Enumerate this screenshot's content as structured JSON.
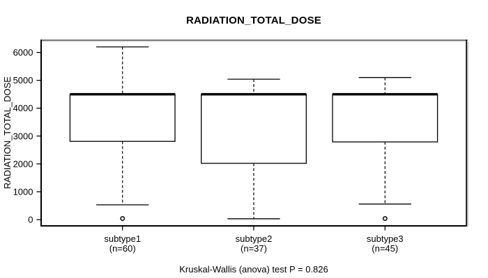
{
  "chart_data": {
    "type": "boxplot",
    "title": "RADIATION_TOTAL_DOSE",
    "ylabel": "RADIATION_TOTAL_DOSE",
    "xlabel": "",
    "caption": "Kruskal-Wallis (anova) test P = 0.826",
    "ylim": [
      0,
      6400
    ],
    "y_ticks": [
      0,
      1000,
      2000,
      3000,
      4000,
      5000,
      6000
    ],
    "grid": false,
    "legend": null,
    "categories": [
      "subtype1",
      "subtype2",
      "subtype3"
    ],
    "groups": [
      {
        "label": "subtype1",
        "sublabel": "(n=60)",
        "n": 60,
        "whisker_low": 530,
        "q1": 2810,
        "median": 4500,
        "q3": 4500,
        "whisker_high": 6200,
        "outliers": [
          40
        ]
      },
      {
        "label": "subtype2",
        "sublabel": "(n=37)",
        "n": 37,
        "whisker_low": 30,
        "q1": 2020,
        "median": 4500,
        "q3": 4500,
        "whisker_high": 5040,
        "outliers": []
      },
      {
        "label": "subtype3",
        "sublabel": "(n=45)",
        "n": 45,
        "whisker_low": 560,
        "q1": 2790,
        "median": 4500,
        "q3": 4500,
        "whisker_high": 5100,
        "outliers": [
          40
        ]
      }
    ],
    "colors": {
      "line": "#000000",
      "box_fill": "#ffffff",
      "frame_top": "#808080",
      "frame_side_shadow": "#aaaaaa"
    }
  }
}
